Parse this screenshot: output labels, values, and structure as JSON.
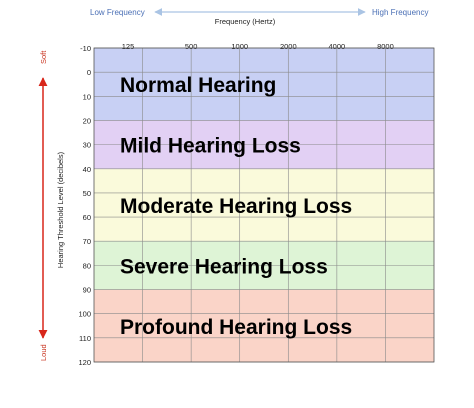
{
  "chart_data": {
    "type": "heatmap",
    "title": "Frequency (Hertz)",
    "xlabel": "Frequency (Hertz)",
    "ylabel": "Hearing Threshold Level (decibels)",
    "x_direction_labels": {
      "low": "Low Frequency",
      "high": "High Frequency"
    },
    "y_direction_labels": {
      "top": "Soft",
      "bottom": "Loud"
    },
    "x_ticks": [
      "125",
      "500",
      "1000",
      "2000",
      "4000",
      "8000"
    ],
    "y_ticks": [
      "-10",
      "0",
      "10",
      "20",
      "30",
      "40",
      "50",
      "60",
      "70",
      "80",
      "90",
      "100",
      "110",
      "120"
    ],
    "ylim": [
      -10,
      120
    ],
    "bands": [
      {
        "label": "Normal Hearing",
        "from": -10,
        "to": 20,
        "color": "#c8d0f4"
      },
      {
        "label": "Mild Hearing Loss",
        "from": 20,
        "to": 40,
        "color": "#e2d0f4"
      },
      {
        "label": "Moderate Hearing Loss",
        "from": 40,
        "to": 70,
        "color": "#fafadb"
      },
      {
        "label": "Severe Hearing Loss",
        "from": 70,
        "to": 90,
        "color": "#def4d6"
      },
      {
        "label": "Profound Hearing Loss",
        "from": 90,
        "to": 120,
        "color": "#fad4c8"
      }
    ],
    "grid": true
  }
}
